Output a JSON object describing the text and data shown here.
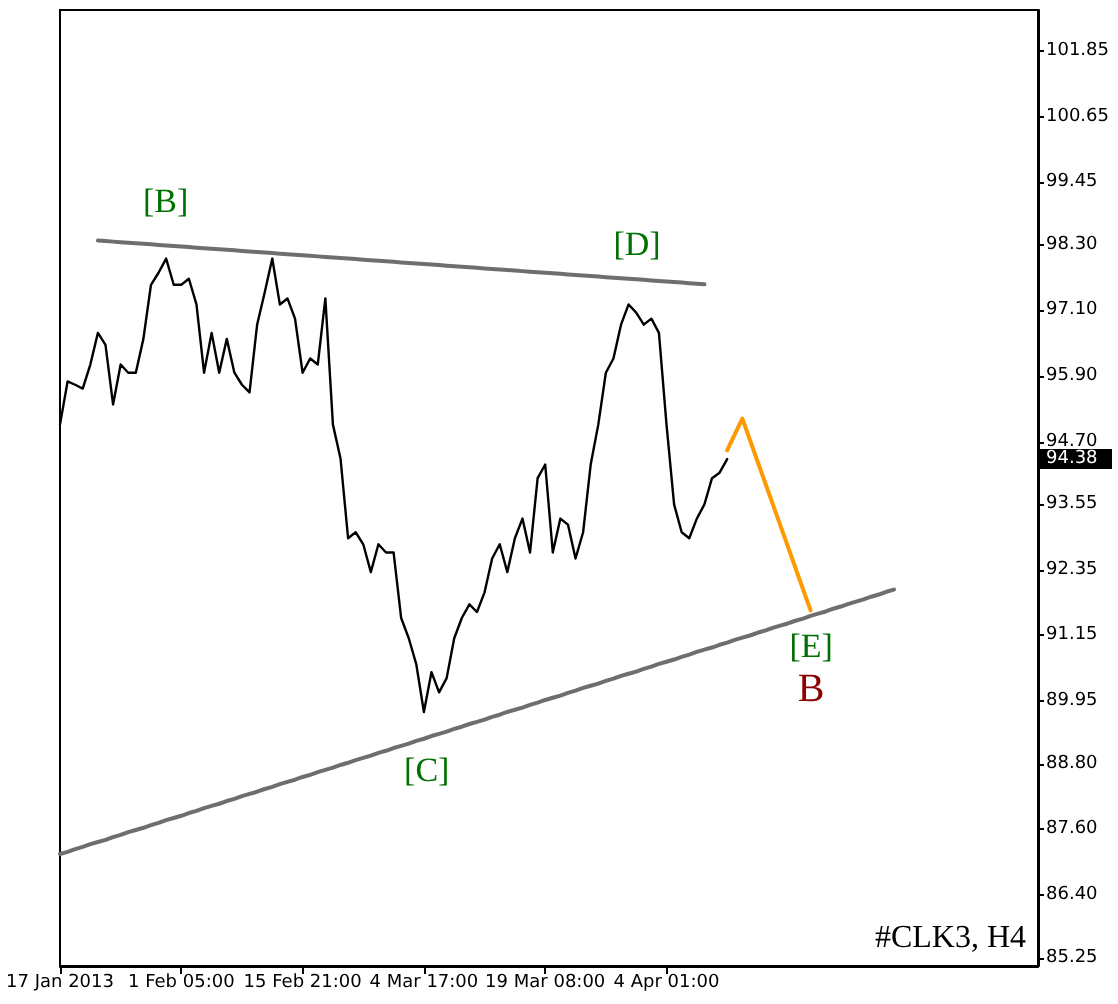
{
  "chart_data": {
    "type": "line",
    "marker": "none",
    "line_style": "solid",
    "categories": [
      "17 Jan 2013",
      null,
      null,
      null,
      null,
      null,
      null,
      null,
      null,
      null,
      null,
      null,
      null,
      null,
      null,
      null,
      "1 Feb 05:00",
      null,
      null,
      null,
      null,
      null,
      null,
      null,
      null,
      null,
      null,
      null,
      null,
      null,
      null,
      null,
      "15 Feb 21:00",
      null,
      null,
      null,
      null,
      null,
      null,
      null,
      null,
      null,
      null,
      null,
      null,
      null,
      null,
      null,
      "4 Mar 17:00",
      null,
      null,
      null,
      null,
      null,
      null,
      null,
      null,
      null,
      null,
      null,
      null,
      null,
      null,
      null,
      "19 Mar 08:00",
      null,
      null,
      null,
      null,
      null,
      null,
      null,
      null,
      null,
      null,
      null,
      null,
      null,
      null,
      null,
      "4 Apr 01:00",
      null,
      null,
      null,
      null,
      null,
      null,
      null,
      null,
      null,
      null,
      null,
      null,
      null,
      null,
      null,
      null,
      null,
      null,
      null,
      null,
      null,
      null,
      null,
      null,
      null,
      null,
      null,
      null,
      null,
      null,
      null,
      null,
      null,
      null,
      null,
      null,
      null,
      null,
      null,
      null,
      null,
      null,
      null,
      null,
      null,
      null,
      null,
      null,
      null
    ],
    "ylim": [
      85.1,
      102.6
    ],
    "yticks": [
      {
        "value": 85.25,
        "label": "85.25"
      },
      {
        "value": 86.4,
        "label": "86.40"
      },
      {
        "value": 87.6,
        "label": "87.60"
      },
      {
        "value": 88.8,
        "label": "88.80"
      },
      {
        "value": 89.95,
        "label": "89.95"
      },
      {
        "value": 91.15,
        "label": "91.15"
      },
      {
        "value": 92.35,
        "label": "92.35"
      },
      {
        "value": 93.55,
        "label": "93.55"
      },
      {
        "value": 94.7,
        "label": "94.70"
      },
      {
        "value": 95.9,
        "label": "95.90"
      },
      {
        "value": 97.1,
        "label": "97.10"
      },
      {
        "value": 98.3,
        "label": "98.30"
      },
      {
        "value": 99.45,
        "label": "99.45"
      },
      {
        "value": 100.65,
        "label": "100.65"
      },
      {
        "value": 101.85,
        "label": "101.85"
      }
    ],
    "series": [
      {
        "color": "#000000",
        "values": [
          95.01,
          95.8,
          95.74,
          95.67,
          96.11,
          96.69,
          96.47,
          95.38,
          96.11,
          95.96,
          95.96,
          96.58,
          97.57,
          97.79,
          98.05,
          97.57,
          97.57,
          97.68,
          97.21,
          95.96,
          96.69,
          95.96,
          96.58,
          95.96,
          95.74,
          95.6,
          96.84,
          97.43,
          98.05,
          97.21,
          97.32,
          96.95,
          95.96,
          96.22,
          96.11,
          97.32,
          95.01,
          94.39,
          92.93,
          93.04,
          92.82,
          92.31,
          92.82,
          92.67,
          92.67,
          91.47,
          91.1,
          90.62,
          89.75,
          90.48,
          90.11,
          90.37,
          91.1,
          91.47,
          91.72,
          91.58,
          91.94,
          92.56,
          92.82,
          92.31,
          92.93,
          93.29,
          92.67,
          94.03,
          94.28,
          92.67,
          93.29,
          93.18,
          92.56,
          93.04,
          94.28,
          95.01,
          95.96,
          96.22,
          96.84,
          97.21,
          97.06,
          96.84,
          96.95,
          96.69,
          95.01,
          93.55,
          93.04,
          92.93,
          93.29,
          93.55,
          94.03,
          94.13,
          94.38,
          null,
          null,
          null,
          null,
          null,
          null,
          null,
          null,
          null,
          null,
          null,
          null,
          null,
          null,
          null,
          null,
          null,
          null,
          null,
          null,
          null,
          null,
          null,
          null,
          null,
          null,
          null,
          null,
          null,
          null,
          null,
          null,
          null,
          null,
          null,
          null,
          null,
          null,
          null,
          null,
          null
        ]
      },
      {
        "color": "#6e6e6e",
        "values": [
          null,
          null,
          null,
          null,
          null,
          98.38,
          98.37,
          98.36,
          98.35,
          98.34,
          98.33,
          98.32,
          98.31,
          98.3,
          98.29,
          98.28,
          98.27,
          98.26,
          98.25,
          98.24,
          98.23,
          98.22,
          98.21,
          98.2,
          98.19,
          98.18,
          98.17,
          98.16,
          98.15,
          98.14,
          98.13,
          98.12,
          98.11,
          98.1,
          98.09,
          98.08,
          98.07,
          98.06,
          98.05,
          98.04,
          98.03,
          98.02,
          98.01,
          98.0,
          97.99,
          97.98,
          97.97,
          97.96,
          97.95,
          97.94,
          97.93,
          97.92,
          97.91,
          97.9,
          97.89,
          97.88,
          97.87,
          97.86,
          97.85,
          97.84,
          97.83,
          97.82,
          97.81,
          97.8,
          97.79,
          97.78,
          97.77,
          97.76,
          97.75,
          97.74,
          97.73,
          97.72,
          97.71,
          97.7,
          97.69,
          97.68,
          97.67,
          97.66,
          97.65,
          97.64,
          97.63,
          97.62,
          97.61,
          97.6,
          97.59,
          97.58,
          null,
          null,
          null,
          null,
          null,
          null,
          null,
          null,
          null,
          null,
          null,
          null,
          null,
          null,
          null,
          null,
          null,
          null,
          null,
          null,
          null,
          null,
          null,
          null,
          null,
          null,
          null,
          null,
          null,
          null,
          null,
          null,
          null,
          null,
          null,
          null,
          null,
          null,
          null,
          null,
          null,
          null,
          null,
          null
        ]
      },
      {
        "color": "#6e6e6e",
        "values": [
          87.15,
          87.19,
          87.24,
          87.28,
          87.33,
          87.37,
          87.41,
          87.46,
          87.5,
          87.55,
          87.59,
          87.63,
          87.68,
          87.72,
          87.77,
          87.81,
          87.85,
          87.9,
          87.94,
          87.99,
          88.03,
          88.07,
          88.12,
          88.16,
          88.21,
          88.25,
          88.29,
          88.34,
          88.38,
          88.43,
          88.47,
          88.51,
          88.56,
          88.6,
          88.65,
          88.69,
          88.73,
          88.78,
          88.82,
          88.87,
          88.91,
          88.95,
          89.0,
          89.04,
          89.09,
          89.13,
          89.17,
          89.22,
          89.26,
          89.31,
          89.35,
          89.39,
          89.44,
          89.48,
          89.53,
          89.57,
          89.61,
          89.66,
          89.7,
          89.75,
          89.79,
          89.83,
          89.88,
          89.92,
          89.97,
          90.01,
          90.05,
          90.1,
          90.14,
          90.19,
          90.23,
          90.27,
          90.32,
          90.36,
          90.41,
          90.45,
          90.49,
          90.54,
          90.58,
          90.63,
          90.67,
          90.71,
          90.76,
          90.8,
          90.85,
          90.89,
          90.93,
          90.98,
          91.02,
          91.07,
          91.11,
          91.15,
          91.2,
          91.24,
          91.29,
          91.33,
          91.37,
          91.42,
          91.46,
          91.51,
          91.55,
          91.59,
          91.64,
          91.68,
          91.73,
          91.77,
          91.81,
          91.86,
          91.9,
          91.95,
          91.99,
          null,
          null,
          null,
          null,
          null,
          null,
          null,
          null,
          null,
          null,
          null,
          null,
          null,
          null,
          null,
          null,
          null,
          null,
          null
        ]
      },
      {
        "color": "#ff9900",
        "values": [
          null,
          null,
          null,
          null,
          null,
          null,
          null,
          null,
          null,
          null,
          null,
          null,
          null,
          null,
          null,
          null,
          null,
          null,
          null,
          null,
          null,
          null,
          null,
          null,
          null,
          null,
          null,
          null,
          null,
          null,
          null,
          null,
          null,
          null,
          null,
          null,
          null,
          null,
          null,
          null,
          null,
          null,
          null,
          null,
          null,
          null,
          null,
          null,
          null,
          null,
          null,
          null,
          null,
          null,
          null,
          null,
          null,
          null,
          null,
          null,
          null,
          null,
          null,
          null,
          null,
          null,
          null,
          null,
          null,
          null,
          null,
          null,
          null,
          null,
          null,
          null,
          null,
          null,
          null,
          null,
          null,
          null,
          null,
          null,
          null,
          null,
          null,
          null,
          94.54,
          94.83,
          95.12,
          94.73,
          94.34,
          93.95,
          93.56,
          93.17,
          92.78,
          92.39,
          92.0,
          91.61,
          null,
          null,
          null,
          null,
          null,
          null,
          null,
          null,
          null,
          null,
          null,
          null,
          null,
          null,
          null,
          null,
          null,
          null,
          null,
          null,
          null,
          null,
          null,
          null,
          null,
          null,
          null,
          null,
          null,
          null
        ]
      }
    ],
    "annotations": [
      "[B]",
      "[C]",
      "[D]",
      "[E]",
      "B",
      "94.38",
      "#CLK3, H4"
    ]
  }
}
